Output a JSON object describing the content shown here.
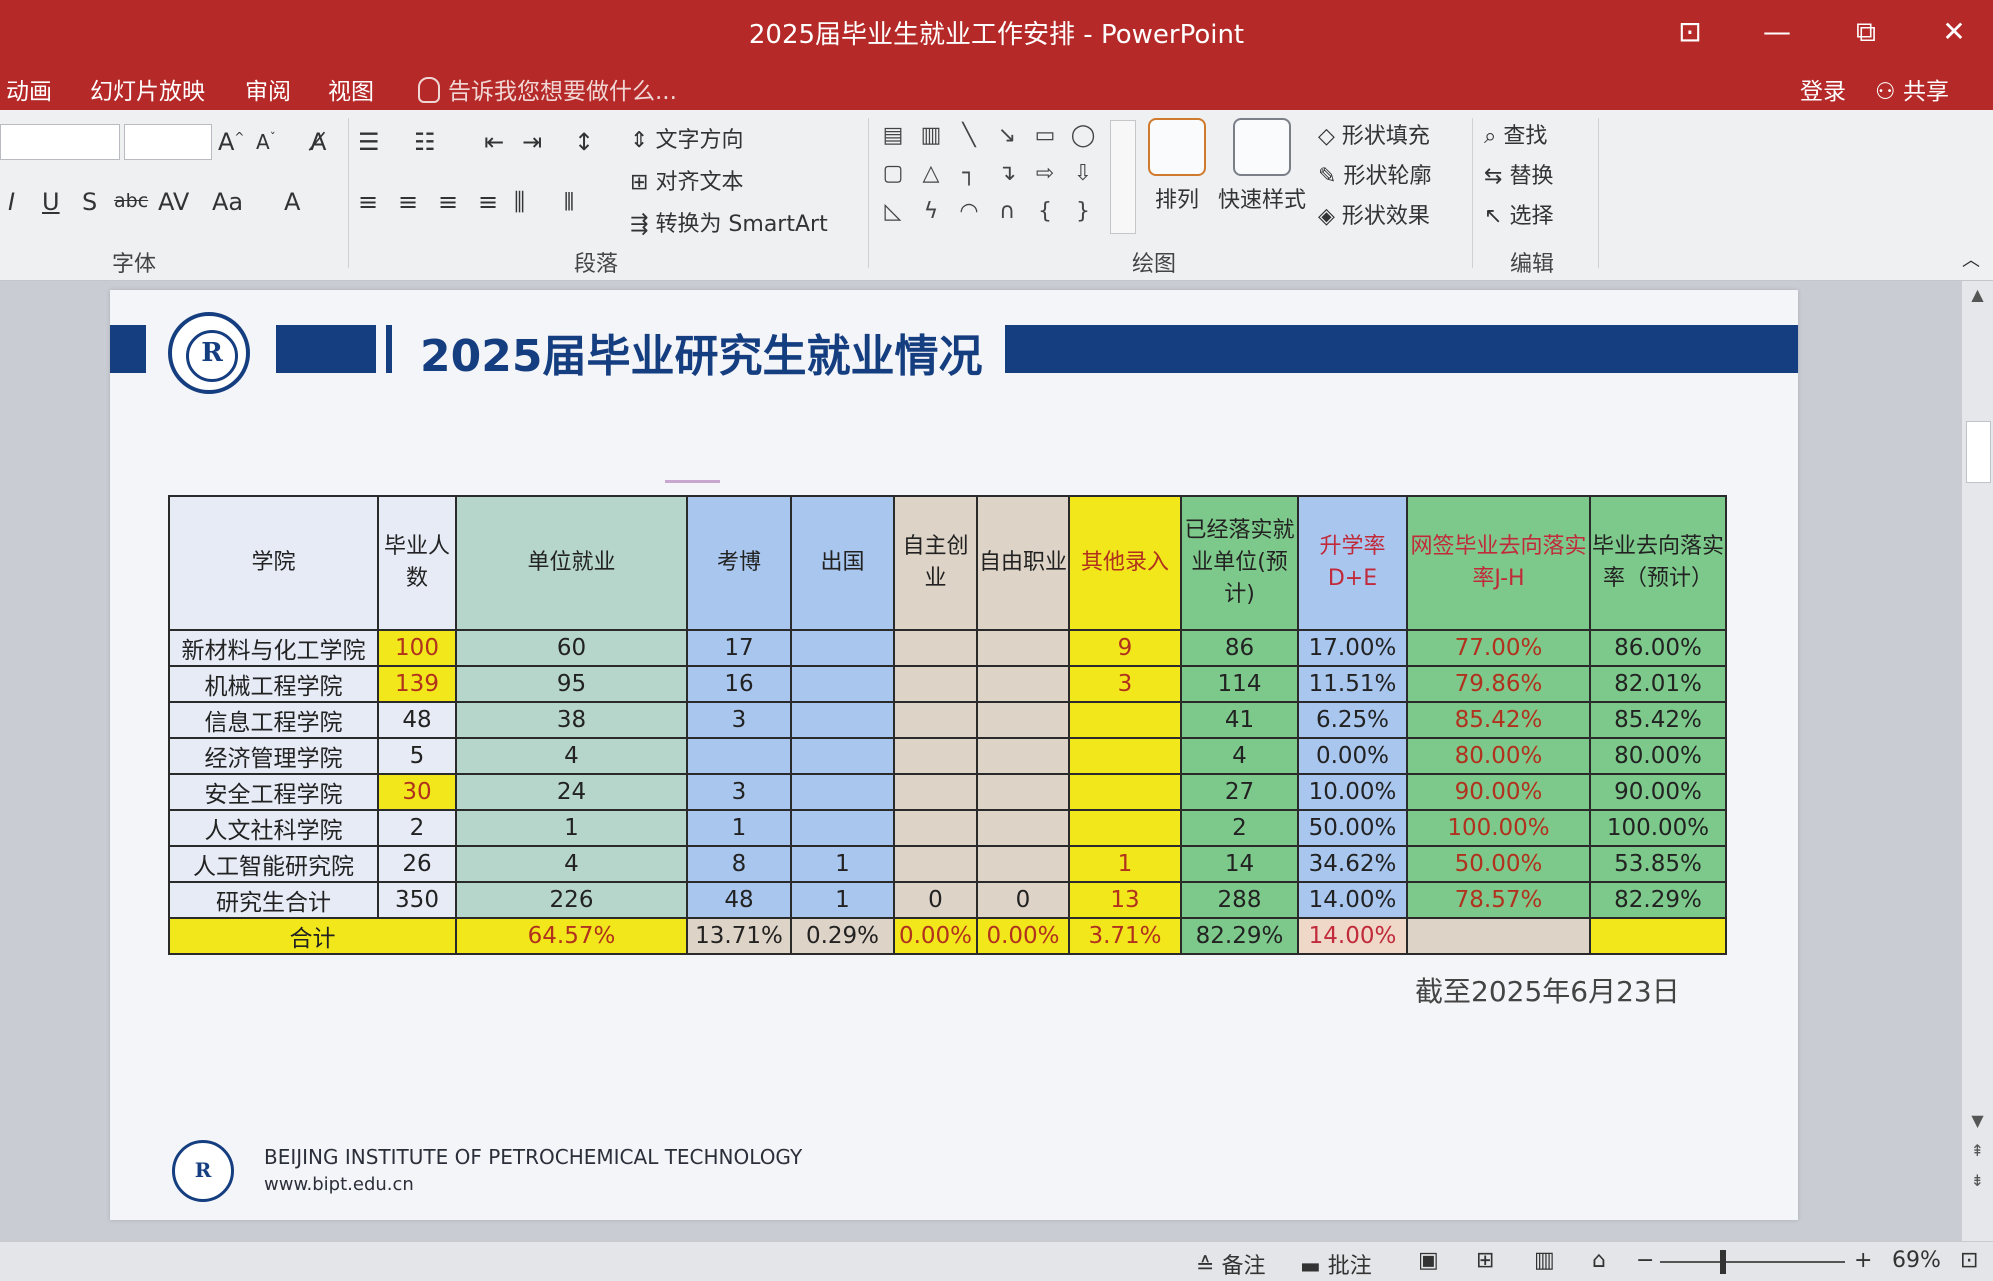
{
  "window": {
    "title": "2025届毕业生就业工作安排 - PowerPoint",
    "restore_label": "⧉",
    "minimize_label": "—",
    "close_label": "✕",
    "ribbon_toggle_label": "⊡"
  },
  "menu": {
    "items": [
      "动画",
      "幻灯片放映",
      "审阅",
      "视图"
    ],
    "tell_me": "告诉我您想要做什么...",
    "login": "登录",
    "share": "共享"
  },
  "ribbon": {
    "groups": {
      "font": "字体",
      "paragraph": "段落",
      "drawing": "绘图",
      "editing": "编辑"
    },
    "text_direction": "文字方向",
    "align_text": "对齐文本",
    "convert_smartart": "转换为 SmartArt",
    "arrange": "排列",
    "quick_styles": "快速样式",
    "shape_fill": "形状填充",
    "shape_outline": "形状轮廓",
    "shape_effects": "形状效果",
    "find": "查找",
    "replace": "替换",
    "select": "选择"
  },
  "slide": {
    "heading": "2025届毕业研究生就业情况",
    "as_of": "截至2025年6月23日",
    "logo_mark": "R",
    "footer_name": "BEIJING INSTITUTE OF PETROCHEMICAL TECHNOLOGY",
    "footer_url": "www.bipt.edu.cn"
  },
  "table": {
    "headers": [
      "学院",
      "毕业人数",
      "单位就业",
      "考博",
      "出国",
      "自主创业",
      "自由职业",
      "其他录入",
      "已经落实就业单位(预计)",
      "升学率D+E",
      "网签毕业去向落实率J-H",
      "毕业去向落实率（预计）"
    ],
    "rows": [
      [
        "新材料与化工学院",
        "100",
        "60",
        "17",
        "",
        "",
        "",
        "9",
        "86",
        "17.00%",
        "77.00%",
        "86.00%"
      ],
      [
        "机械工程学院",
        "139",
        "95",
        "16",
        "",
        "",
        "",
        "3",
        "114",
        "11.51%",
        "79.86%",
        "82.01%"
      ],
      [
        "信息工程学院",
        "48",
        "38",
        "3",
        "",
        "",
        "",
        "",
        "41",
        "6.25%",
        "85.42%",
        "85.42%"
      ],
      [
        "经济管理学院",
        "5",
        "4",
        "",
        "",
        "",
        "",
        "",
        "4",
        "0.00%",
        "80.00%",
        "80.00%"
      ],
      [
        "安全工程学院",
        "30",
        "24",
        "3",
        "",
        "",
        "",
        "",
        "27",
        "10.00%",
        "90.00%",
        "90.00%"
      ],
      [
        "人文社科学院",
        "2",
        "1",
        "1",
        "",
        "",
        "",
        "",
        "2",
        "50.00%",
        "100.00%",
        "100.00%"
      ],
      [
        "人工智能研究院",
        "26",
        "4",
        "8",
        "1",
        "",
        "",
        "1",
        "14",
        "34.62%",
        "50.00%",
        "53.85%"
      ],
      [
        "研究生合计",
        "350",
        "226",
        "48",
        "1",
        "0",
        "0",
        "13",
        "288",
        "14.00%",
        "78.57%",
        "82.29%"
      ]
    ],
    "highlighted_grad_rows": [
      0,
      1,
      4
    ],
    "total_row": {
      "label": "合计",
      "emp": "64.57%",
      "phd": "13.71%",
      "abroad": "0.29%",
      "startup": "0.00%",
      "freelance": "0.00%",
      "other": "3.71%",
      "placed": "82.29%",
      "rate": "14.00%",
      "signed": "",
      "final": ""
    }
  },
  "statusbar": {
    "notes": "备注",
    "comments": "批注",
    "zoom": "69%",
    "zoom_minus": "−",
    "zoom_plus": "+"
  }
}
